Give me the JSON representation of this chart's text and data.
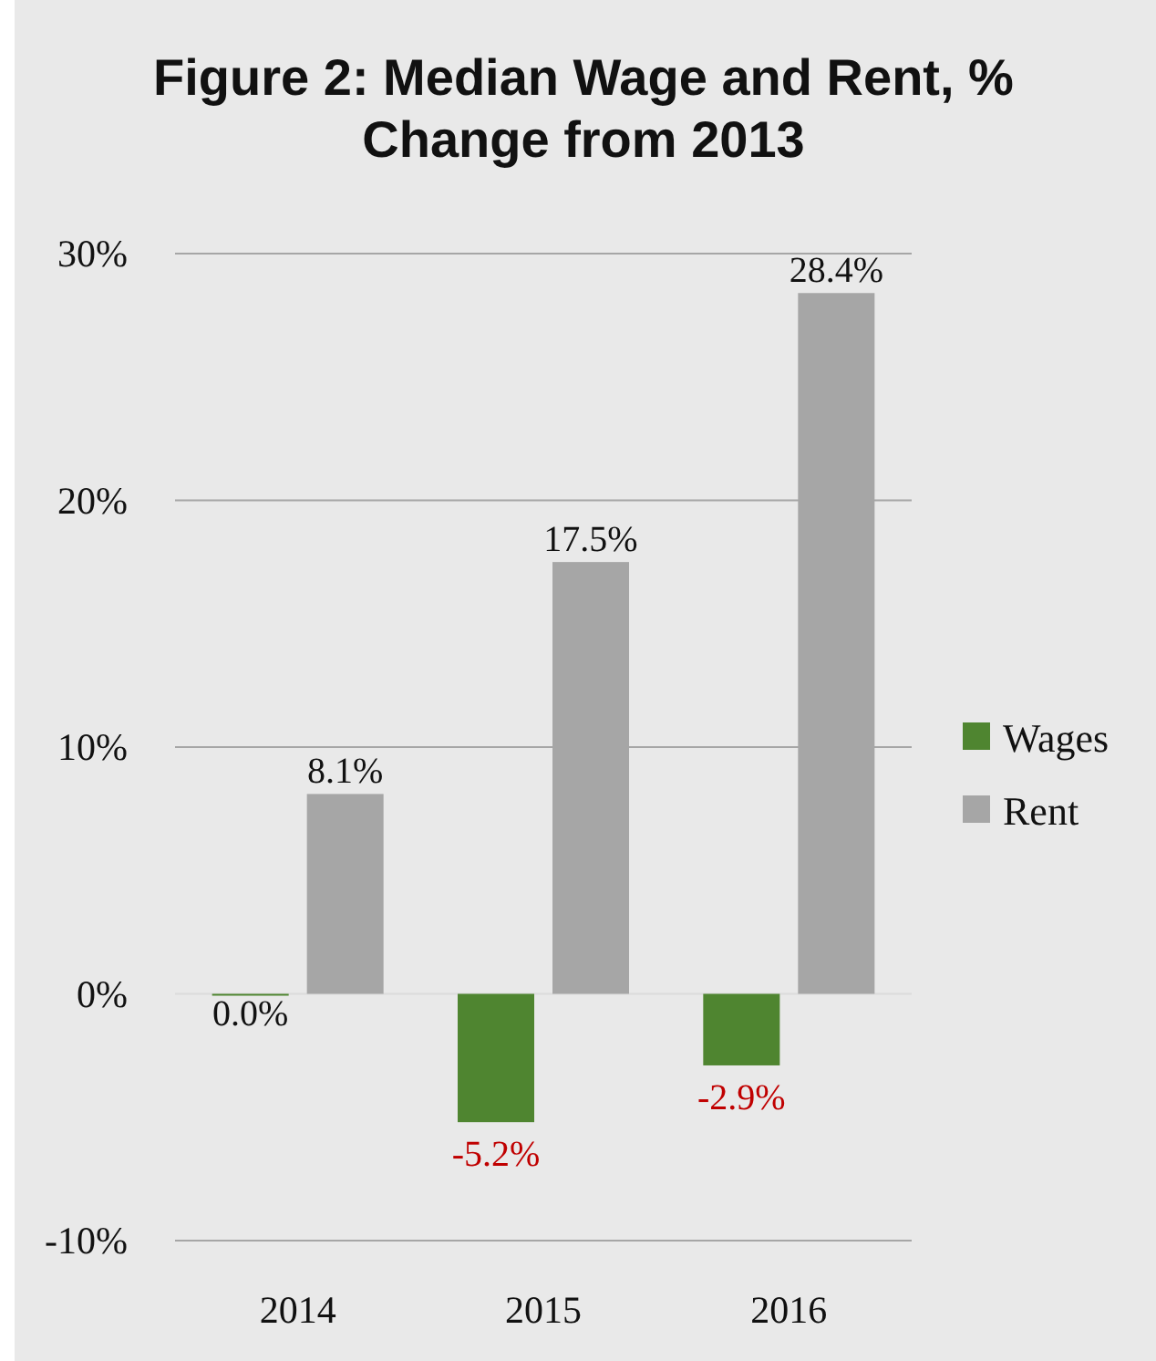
{
  "chart_data": {
    "type": "bar",
    "title": "Figure 2: Median Wage and Rent, % Change from 2013",
    "categories": [
      "2014",
      "2015",
      "2016"
    ],
    "series": [
      {
        "name": "Wages",
        "color": "#4f8530",
        "values": [
          0.0,
          -5.2,
          -2.9
        ],
        "value_labels": [
          "0.0%",
          "-5.2%",
          "-2.9%"
        ]
      },
      {
        "name": "Rent",
        "color": "#a6a6a6",
        "values": [
          8.1,
          17.5,
          28.4
        ],
        "value_labels": [
          "8.1%",
          "17.5%",
          "28.4%"
        ]
      }
    ],
    "ylim": [
      -10,
      30
    ],
    "yticks": [
      {
        "value": -10,
        "label": "-10%"
      },
      {
        "value": 0,
        "label": "0%"
      },
      {
        "value": 10,
        "label": "10%"
      },
      {
        "value": 20,
        "label": "20%"
      },
      {
        "value": 30,
        "label": "30%"
      }
    ],
    "grid": "y",
    "legend": "right"
  }
}
